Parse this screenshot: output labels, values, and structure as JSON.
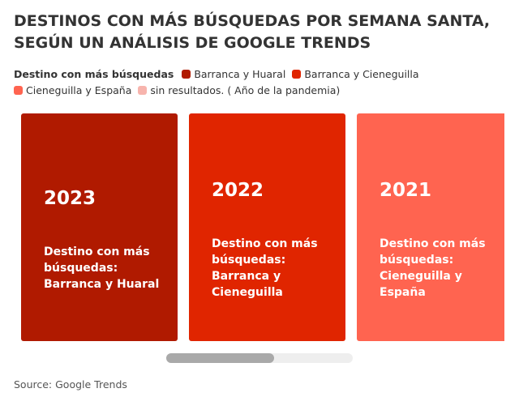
{
  "title": "DESTINOS CON MÁS BÚSQUEDAS POR SEMANA SANTA, SEGÚN UN ANÁLISIS DE GOOGLE TRENDS",
  "source": "Source: Google Trends",
  "legend": {
    "title": "Destino con más búsquedas",
    "items": [
      {
        "label": "Barranca y Huaral",
        "color": "#b01a00"
      },
      {
        "label": "Barranca y Cieneguilla",
        "color": "#e02500"
      },
      {
        "label": "Cieneguilla y España",
        "color": "#ff6450"
      },
      {
        "label": "sin resultados. ( Año de la pandemia)",
        "color": "#f7b4ad"
      }
    ]
  },
  "chart_data": {
    "type": "table",
    "cards": [
      {
        "year": "2023",
        "label": "Destino con más búsquedas:",
        "value": "Barranca y Huaral",
        "color": "#b01a00"
      },
      {
        "year": "2022",
        "label": "Destino con más búsquedas:",
        "value": "Barranca y Cieneguilla",
        "color": "#e02500"
      },
      {
        "year": "2021",
        "label": "Destino con más búsquedas:",
        "value": "Cieneguilla y España",
        "color": "#ff6450"
      }
    ]
  }
}
